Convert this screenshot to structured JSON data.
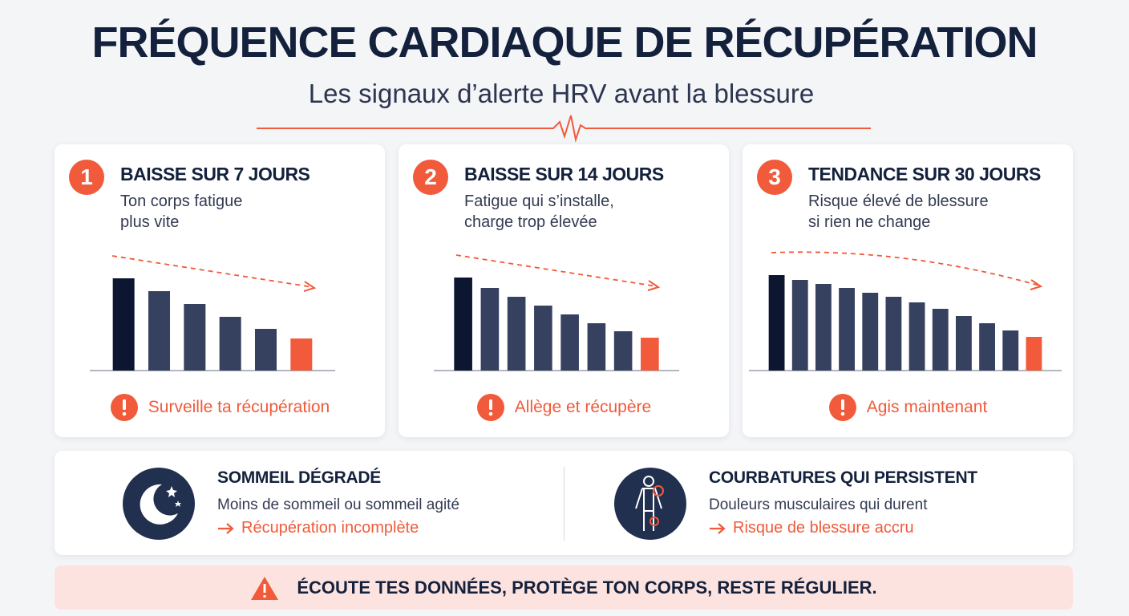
{
  "title": "FRÉQUENCE CARDIAQUE DE RÉCUPÉRATION",
  "subtitle": "Les signaux d’alerte HRV avant la blessure",
  "panels": [
    {
      "number": "1",
      "heading": "BAISSE SUR 7 JOURS",
      "text": [
        "Ton corps fatigue",
        "plus vite"
      ],
      "bars": [
        115,
        99,
        83,
        67,
        52,
        40
      ],
      "alert": "Surveille ta récupération"
    },
    {
      "number": "2",
      "heading": "BAISSE SUR 14 JOURS",
      "text": [
        "Fatigue qui s’installe,",
        "charge trop élevée"
      ],
      "bars": [
        116,
        103,
        92,
        81,
        70,
        59,
        49,
        41
      ],
      "alert": "Allège et récupère"
    },
    {
      "number": "3",
      "heading": "TENDANCE SUR 30 JOURS",
      "text": [
        "Risque élevé de blessure",
        "si rien ne change"
      ],
      "bars": [
        119,
        113,
        108,
        103,
        97,
        92,
        85,
        77,
        68,
        59,
        50,
        42
      ],
      "alert": "Agis maintenant"
    }
  ],
  "signs": [
    {
      "heading": "SOMMEIL DÉGRADÉ",
      "text": "Moins de sommeil ou sommeil agité",
      "consequence": "Récupération incomplète"
    },
    {
      "heading": "COURBATURES QUI PERSISTENT",
      "text": "Douleurs musculaires qui durent",
      "consequence": "Risque de blessure accru"
    }
  ],
  "footer": "ÉCOUTE TES DONNÉES, PROTÈGE TON CORPS, RESTE RÉGULIER."
}
